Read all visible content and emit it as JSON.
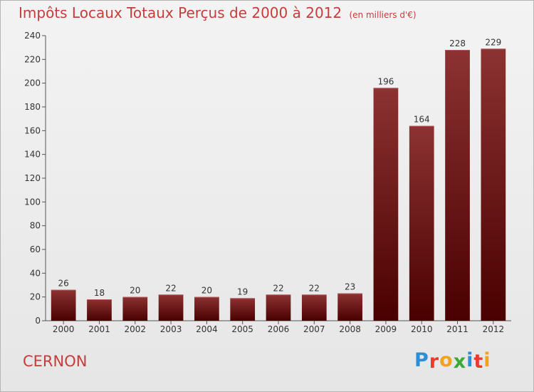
{
  "header": {
    "title": "Impôts Locaux Totaux Perçus de 2000 à 2012",
    "subtitle": "(en milliers d'€)"
  },
  "commune": "CERNON",
  "logo": {
    "text": "Proxiti",
    "colors": [
      "#2b8fd6",
      "#e83b2b",
      "#f2a21d",
      "#3aaa35",
      "#2b8fd6",
      "#e83b2b",
      "#f2a21d"
    ]
  },
  "colors": {
    "bar_top": "#8c3232",
    "bar_bottom": "#4a0000",
    "accent": "#c83b3b"
  },
  "chart_data": {
    "type": "bar",
    "title": "Impôts Locaux Totaux Perçus de 2000 à 2012",
    "xlabel": "",
    "ylabel": "",
    "categories": [
      "2000",
      "2001",
      "2002",
      "2003",
      "2004",
      "2005",
      "2006",
      "2007",
      "2008",
      "2009",
      "2010",
      "2011",
      "2012"
    ],
    "values": [
      26,
      18,
      20,
      22,
      20,
      19,
      22,
      22,
      23,
      196,
      164,
      228,
      229
    ],
    "ylim": [
      0,
      240
    ],
    "yticks": [
      0,
      20,
      40,
      60,
      80,
      100,
      120,
      140,
      160,
      180,
      200,
      220,
      240
    ],
    "grid": false,
    "data_labels": true
  }
}
